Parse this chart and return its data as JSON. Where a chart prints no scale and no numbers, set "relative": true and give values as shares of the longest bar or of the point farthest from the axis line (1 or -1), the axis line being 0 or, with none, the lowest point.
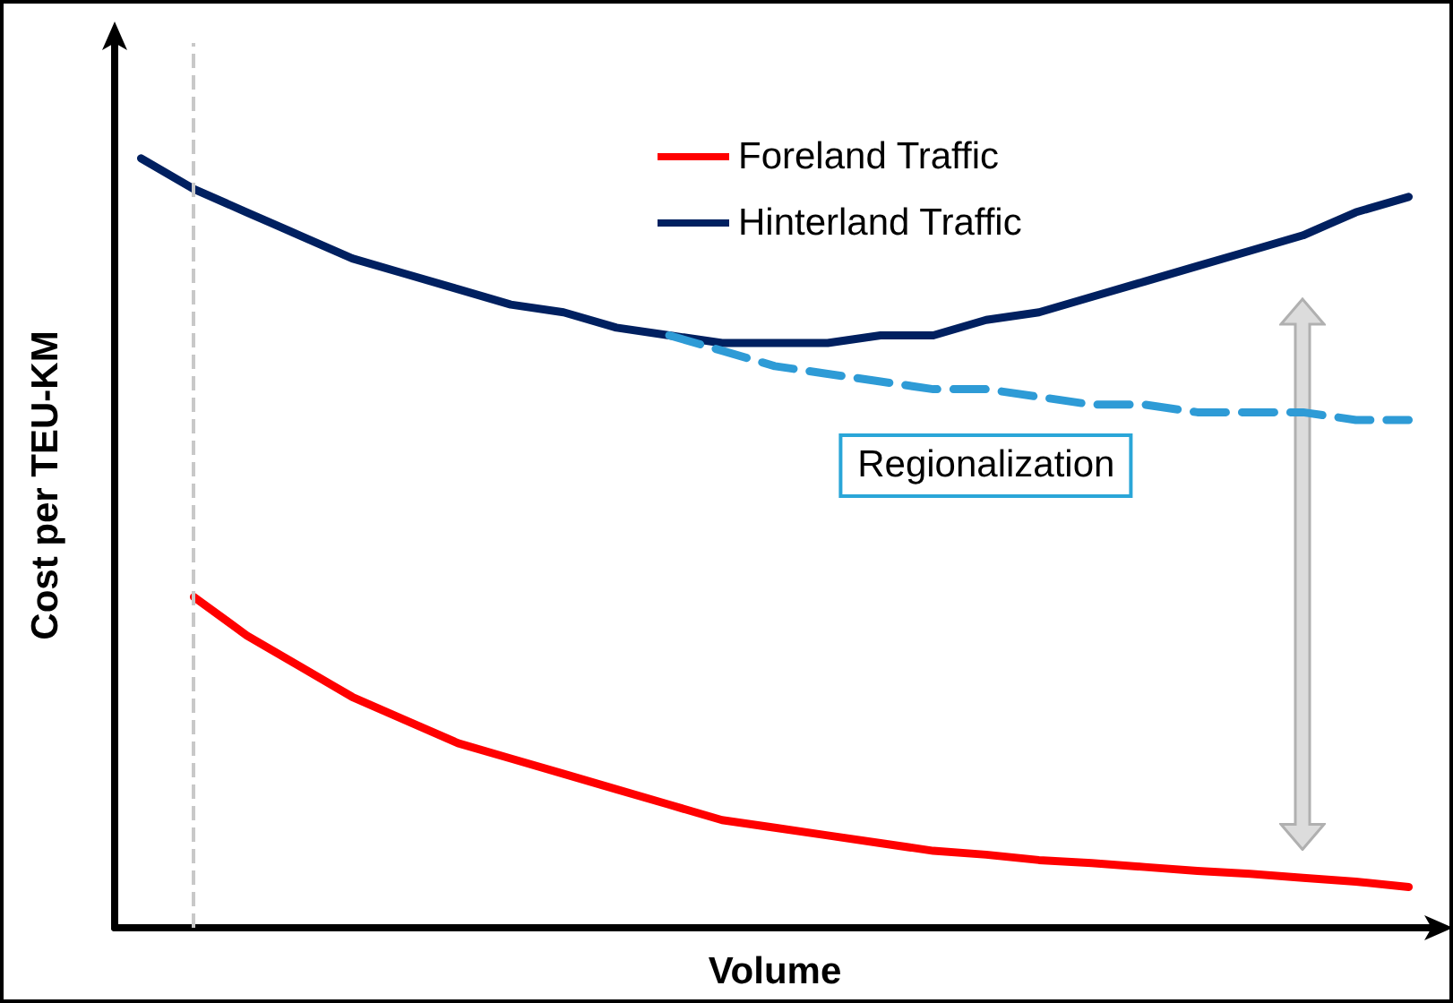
{
  "chart_data": {
    "type": "line",
    "relative": true,
    "xlabel": "Volume",
    "ylabel": "Cost per TEU-KM",
    "categories": [
      null,
      null,
      null,
      null,
      null,
      null,
      null,
      null,
      null,
      null,
      null,
      null,
      null,
      null,
      null,
      null,
      null,
      null,
      null,
      null,
      null,
      null,
      null,
      null,
      null
    ],
    "series": [
      {
        "name": "Foreland Traffic",
        "color": "#ff0000",
        "line_style": "solid",
        "values": [
          null,
          0.43,
          0.38,
          0.34,
          0.3,
          0.27,
          0.24,
          0.22,
          0.2,
          0.18,
          0.16,
          0.14,
          0.13,
          0.12,
          0.11,
          0.1,
          0.095,
          0.088,
          0.084,
          0.079,
          0.074,
          0.07,
          0.065,
          0.06,
          0.053
        ]
      },
      {
        "name": "Hinterland Traffic",
        "color": "#002060",
        "line_style": "solid",
        "values": [
          1.0,
          0.96,
          0.93,
          0.9,
          0.87,
          0.85,
          0.83,
          0.81,
          0.8,
          0.78,
          0.77,
          0.76,
          0.76,
          0.76,
          0.77,
          0.77,
          0.79,
          0.8,
          0.82,
          0.84,
          0.86,
          0.88,
          0.9,
          0.93,
          0.95
        ]
      },
      {
        "color": "#2e9bd6",
        "line_style": "dashed",
        "values": [
          null,
          null,
          null,
          null,
          null,
          null,
          null,
          null,
          null,
          null,
          0.77,
          0.75,
          0.73,
          0.72,
          0.71,
          0.7,
          0.7,
          0.69,
          0.68,
          0.68,
          0.67,
          0.67,
          0.67,
          0.66,
          0.66
        ]
      }
    ],
    "annotations": [
      "Regionalization"
    ],
    "legend": "top",
    "marker": "none",
    "grid": false
  }
}
